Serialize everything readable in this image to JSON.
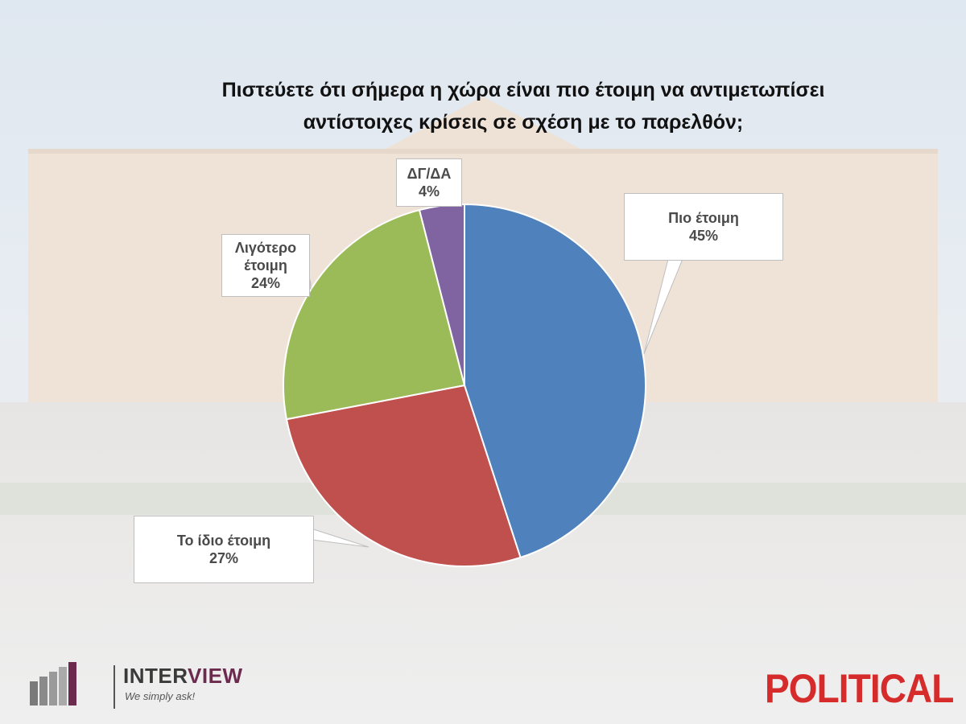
{
  "chart_data": {
    "type": "pie",
    "title": "Πιστεύετε ότι σήμερα η χώρα είναι πιο έτοιμη να αντιμετωπίσει αντίστοιχες κρίσεις σε σχέση με το παρελθόν;",
    "title_lines": [
      "Πιστεύετε ότι σήμερα η χώρα είναι πιο έτοιμη να αντιμετωπίσει",
      "αντίστοιχες κρίσεις σε σχέση με το παρελθόν;"
    ],
    "slices": [
      {
        "label_lines": [
          "Πιο έτοιμη"
        ],
        "value": 45,
        "value_text": "45%",
        "color": "#4f81bd"
      },
      {
        "label_lines": [
          "Το ίδιο έτοιμη"
        ],
        "value": 27,
        "value_text": "27%",
        "color": "#c0504d"
      },
      {
        "label_lines": [
          "Λιγότερο",
          "έτοιμη"
        ],
        "value": 24,
        "value_text": "24%",
        "color": "#9bbb59"
      },
      {
        "label_lines": [
          "ΔΓ/ΔΑ"
        ],
        "value": 4,
        "value_text": "4%",
        "color": "#8064a2"
      }
    ]
  },
  "logos": {
    "interview": {
      "name_main": "INTER",
      "name_accent": "VIEW",
      "tagline": "We simply ask!"
    },
    "political": {
      "name": "POLITICAL"
    }
  }
}
